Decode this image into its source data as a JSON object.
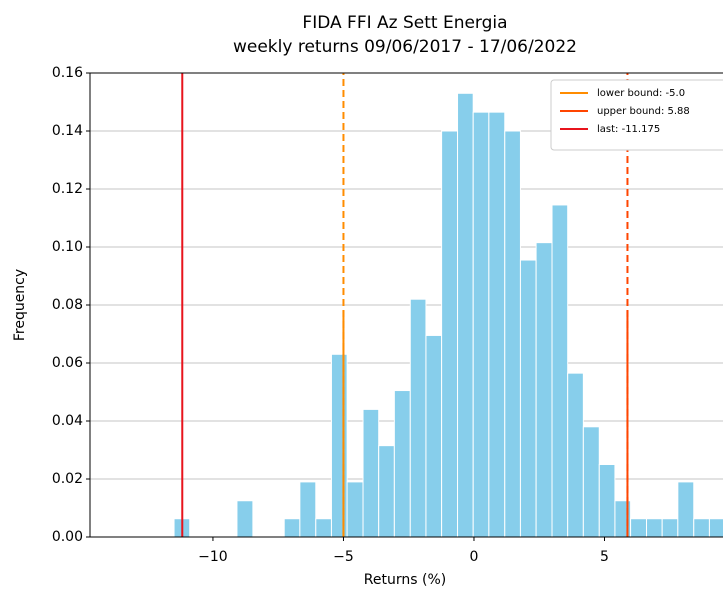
{
  "chart_data": {
    "type": "histogram",
    "title": "FIDA FFI Az Sett Energia",
    "subtitle": "weekly returns 09/06/2017 - 17/06/2022",
    "xlabel": "Returns (%)",
    "ylabel": "Frequency",
    "bins": [
      -11.49,
      -10.89,
      -10.28,
      -9.68,
      -9.08,
      -8.47,
      -7.87,
      -7.27,
      -6.67,
      -6.06,
      -5.46,
      -4.86,
      -4.25,
      -3.65,
      -3.05,
      -2.44,
      -1.84,
      -1.24,
      -0.63,
      -0.03,
      0.57,
      1.18,
      1.78,
      2.38,
      2.99,
      3.59,
      4.19,
      4.8,
      5.4,
      6.0,
      6.61,
      7.21,
      7.81,
      8.42,
      9.02,
      9.62
    ],
    "values": [
      0.0063,
      0,
      0,
      0,
      0.0125,
      0,
      0,
      0.0063,
      0.019,
      0.0063,
      0.063,
      0.019,
      0.044,
      0.0315,
      0.0505,
      0.082,
      0.0695,
      0.14,
      0.153,
      0.1465,
      0.1465,
      0.14,
      0.0955,
      0.1015,
      0.1145,
      0.0565,
      0.038,
      0.025,
      0.0125,
      0.0063,
      0.0063,
      0.0063,
      0.019,
      0.0063,
      0.0063
    ],
    "color": "#87ceeb",
    "xlim": [
      -14.71,
      9.54
    ],
    "ylim": [
      0,
      0.16
    ],
    "xticks": [
      {
        "value": -10,
        "label": "−10"
      },
      {
        "value": -5,
        "label": "−5"
      },
      0,
      5
    ],
    "yticks": [
      {
        "value": 0,
        "label": "0.00"
      },
      {
        "value": 0.02,
        "label": "0.02"
      },
      {
        "value": 0.04,
        "label": "0.04"
      },
      {
        "value": 0.06,
        "label": "0.06"
      },
      {
        "value": 0.08,
        "label": "0.08"
      },
      {
        "value": 0.1,
        "label": "0.10"
      },
      {
        "value": 0.12,
        "label": "0.12"
      },
      {
        "value": 0.14,
        "label": "0.14"
      },
      {
        "value": 0.16,
        "label": "0.16"
      }
    ],
    "grid": true,
    "legend": "upper right",
    "vlines": [
      {
        "name": "lower bound: -5.0",
        "value": -5.0,
        "color": "#ff8c00",
        "dashed": true,
        "solid_to": 0.078
      },
      {
        "name": "upper bound: 5.88",
        "value": 5.88,
        "color": "#ff4500",
        "dashed": true,
        "solid_to": 0.078
      },
      {
        "name": "last: -11.175",
        "value": -11.175,
        "color": "#e8141c",
        "dashed": false
      }
    ]
  }
}
